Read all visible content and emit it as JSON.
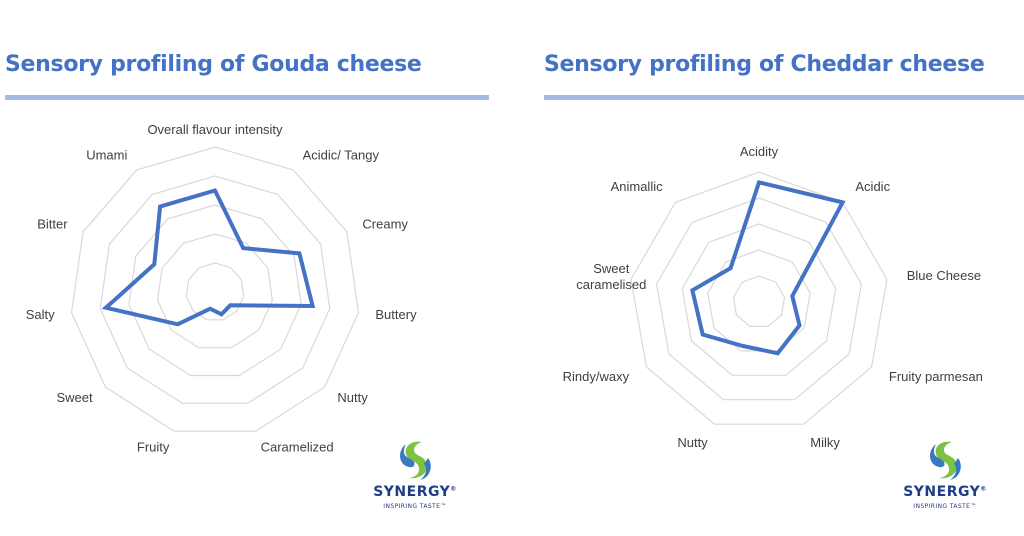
{
  "colors": {
    "title": "#4472c4",
    "title_rule": "#a6b9e0",
    "series_line": "#4472c4",
    "grid": "#d9d9d9",
    "axis_label": "#404040",
    "logo_text": "#1f3c88",
    "logo_green": "#7cc243",
    "logo_blue": "#3a78c2"
  },
  "logo": {
    "icon": "synergy-s-swirl-icon",
    "name": "SYNERGY",
    "trademark": "®",
    "tagline": "INSPIRING TASTE™"
  },
  "chart_data": [
    {
      "type": "radar",
      "title": "Sensory profiling of Gouda cheese",
      "axes": [
        "Overall flavour intensity",
        "Acidic/ Tangy",
        "Creamy",
        "Buttery",
        "Nutty",
        "Caramelized",
        "Fruity",
        "Sweet",
        "Salty",
        "Bitter",
        "Umami"
      ],
      "rings": 5,
      "range": [
        0,
        5
      ],
      "grid": true,
      "series": [
        {
          "values": [
            3.5,
            1.8,
            3.2,
            3.4,
            0.7,
            0.8,
            0.6,
            1.7,
            3.8,
            2.3,
            3.5
          ]
        }
      ]
    },
    {
      "type": "radar",
      "title": "Sensory profiling of Cheddar cheese",
      "axes": [
        "Acidity",
        "Acidic",
        "Blue Cheese",
        "Fruity parmesan",
        "Milky",
        "Nutty",
        "Rindy/waxy",
        "Sweet caramelised",
        "Animallic"
      ],
      "rings": 5,
      "range": [
        0,
        5
      ],
      "grid": true,
      "series": [
        {
          "values": [
            4.6,
            5.0,
            1.3,
            1.8,
            2.1,
            1.8,
            2.5,
            2.6,
            1.7
          ]
        }
      ]
    }
  ]
}
